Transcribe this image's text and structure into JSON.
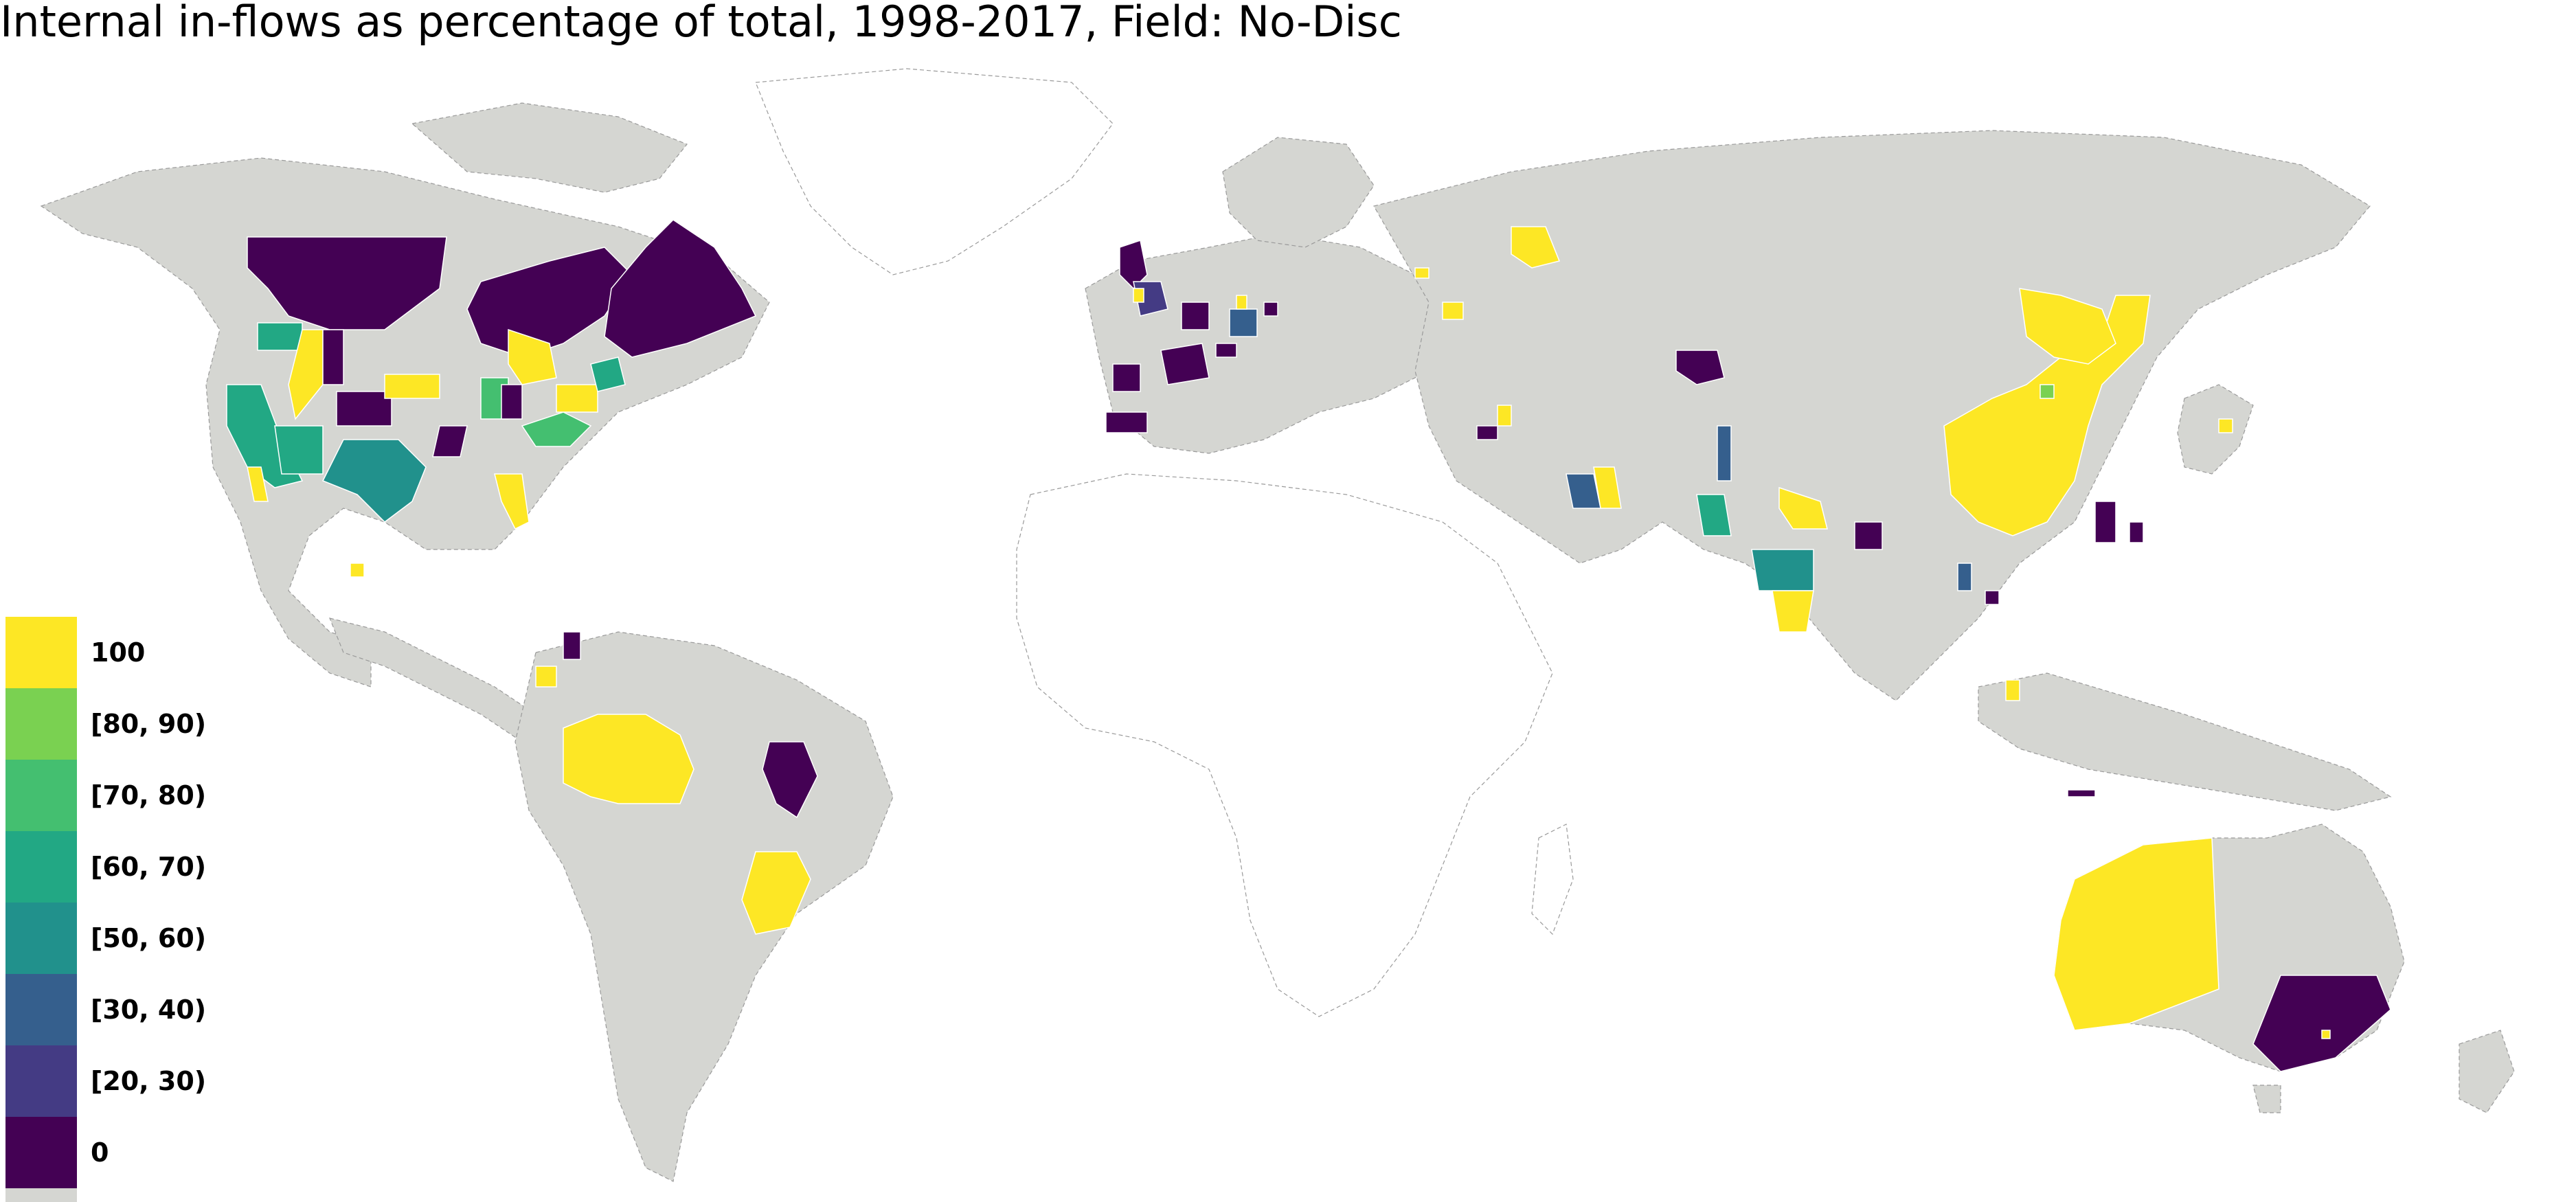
{
  "title": "Internal in-flows as percentage of total, 1998-2017, Field: No-Disc",
  "legend": {
    "items": [
      {
        "label": "100",
        "color": "#fde725"
      },
      {
        "label": "[80, 90)",
        "color": "#7ad151"
      },
      {
        "label": "[70, 80)",
        "color": "#44bf70"
      },
      {
        "label": "[60, 70)",
        "color": "#22a884"
      },
      {
        "label": "[50, 60)",
        "color": "#21918c"
      },
      {
        "label": "[30, 40)",
        "color": "#355f8d"
      },
      {
        "label": "[20, 30)",
        "color": "#443b84"
      },
      {
        "label": "0",
        "color": "#440154"
      }
    ],
    "no_data_color": "#d5d6d2"
  },
  "regions": [
    {
      "name": "Alaska",
      "value": 0
    },
    {
      "name": "Western Canada",
      "value": 0
    },
    {
      "name": "Ontario",
      "value": 0
    },
    {
      "name": "Quebec",
      "value": 0
    },
    {
      "name": "California",
      "value": "[60, 70)"
    },
    {
      "name": "Arizona",
      "value": "[60, 70)"
    },
    {
      "name": "Texas",
      "value": "[50, 60)"
    },
    {
      "name": "Washington",
      "value": "[60, 70)"
    },
    {
      "name": "Idaho",
      "value": 100
    },
    {
      "name": "Colorado",
      "value": 0
    },
    {
      "name": "Nebraska",
      "value": 100
    },
    {
      "name": "Michigan",
      "value": 100
    },
    {
      "name": "Indiana",
      "value": "[70, 80)"
    },
    {
      "name": "North Carolina",
      "value": "[70, 80)"
    },
    {
      "name": "Pennsylvania",
      "value": 100
    },
    {
      "name": "Florida",
      "value": 100
    },
    {
      "name": "United Kingdom",
      "value": 0
    },
    {
      "name": "England South",
      "value": "[20, 30)"
    },
    {
      "name": "France",
      "value": 0
    },
    {
      "name": "Spain",
      "value": 0
    },
    {
      "name": "Germany",
      "value": "[30, 40)"
    },
    {
      "name": "Russia Ural",
      "value": 100
    },
    {
      "name": "Kazakhstan",
      "value": 0
    },
    {
      "name": "China",
      "value": 100
    },
    {
      "name": "Taiwan",
      "value": 0
    },
    {
      "name": "India North",
      "value": 100
    },
    {
      "name": "India Gujarat",
      "value": "[50, 60)"
    },
    {
      "name": "India Karnataka",
      "value": 100
    },
    {
      "name": "Iran",
      "value": "[30, 40)"
    },
    {
      "name": "Brazil Amazonas",
      "value": 100
    },
    {
      "name": "Brazil Maranhao",
      "value": 0
    },
    {
      "name": "Brazil Minas Gerais",
      "value": 100
    },
    {
      "name": "Western Australia",
      "value": 100
    },
    {
      "name": "Victoria NSW",
      "value": 0
    }
  ]
}
